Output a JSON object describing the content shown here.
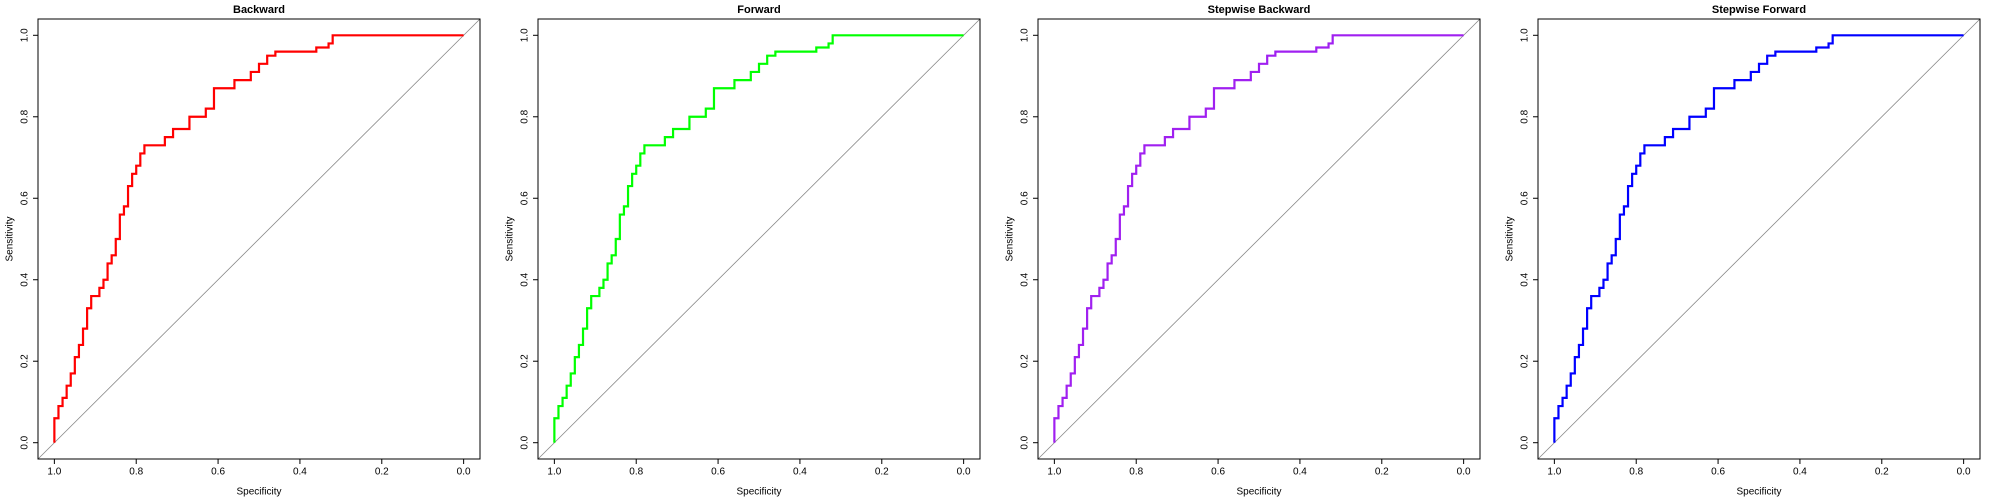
{
  "chart_data": [
    {
      "type": "line",
      "title": "Backward",
      "xlabel": "Specificity",
      "ylabel": "Sensitivity",
      "x": [
        1.0,
        1.0,
        0.99,
        0.99,
        0.98,
        0.98,
        0.97,
        0.97,
        0.96,
        0.96,
        0.95,
        0.95,
        0.94,
        0.94,
        0.93,
        0.93,
        0.92,
        0.92,
        0.91,
        0.91,
        0.89,
        0.89,
        0.88,
        0.88,
        0.87,
        0.87,
        0.86,
        0.86,
        0.85,
        0.85,
        0.84,
        0.84,
        0.83,
        0.83,
        0.82,
        0.82,
        0.81,
        0.81,
        0.8,
        0.8,
        0.79,
        0.79,
        0.78,
        0.78,
        0.73,
        0.73,
        0.71,
        0.71,
        0.67,
        0.67,
        0.63,
        0.63,
        0.61,
        0.61,
        0.56,
        0.56,
        0.52,
        0.52,
        0.5,
        0.5,
        0.48,
        0.48,
        0.46,
        0.46,
        0.36,
        0.36,
        0.33,
        0.33,
        0.32,
        0.32,
        0.0
      ],
      "series": [
        {
          "color": "#ff0000",
          "values": [
            0.0,
            0.06,
            0.06,
            0.09,
            0.09,
            0.11,
            0.11,
            0.14,
            0.14,
            0.17,
            0.17,
            0.21,
            0.21,
            0.24,
            0.24,
            0.28,
            0.28,
            0.33,
            0.33,
            0.36,
            0.36,
            0.38,
            0.38,
            0.4,
            0.4,
            0.44,
            0.44,
            0.46,
            0.46,
            0.5,
            0.5,
            0.56,
            0.56,
            0.58,
            0.58,
            0.63,
            0.63,
            0.66,
            0.66,
            0.68,
            0.68,
            0.71,
            0.71,
            0.73,
            0.73,
            0.75,
            0.75,
            0.77,
            0.77,
            0.8,
            0.8,
            0.82,
            0.82,
            0.87,
            0.87,
            0.89,
            0.89,
            0.91,
            0.91,
            0.93,
            0.93,
            0.95,
            0.95,
            0.96,
            0.96,
            0.97,
            0.97,
            0.98,
            0.98,
            1.0,
            1.0
          ]
        }
      ],
      "xlim": [
        1.04,
        -0.04
      ],
      "ylim": [
        -0.04,
        1.04
      ],
      "xticks": [
        {
          "value": 1,
          "label": "1.0"
        },
        0.8,
        0.6,
        0.4,
        0.2,
        {
          "value": 0,
          "label": "0.0"
        }
      ],
      "yticks": [
        {
          "value": 0,
          "label": "0.0"
        },
        0.2,
        0.4,
        0.6,
        0.8,
        {
          "value": 1,
          "label": "1.0"
        }
      ],
      "diagonal": true
    },
    {
      "type": "line",
      "title": "Forward",
      "xlabel": "Specificity",
      "ylabel": "Sensitivity",
      "x": [
        1.0,
        1.0,
        0.99,
        0.99,
        0.98,
        0.98,
        0.97,
        0.97,
        0.96,
        0.96,
        0.95,
        0.95,
        0.94,
        0.94,
        0.93,
        0.93,
        0.92,
        0.92,
        0.91,
        0.91,
        0.89,
        0.89,
        0.88,
        0.88,
        0.87,
        0.87,
        0.86,
        0.86,
        0.85,
        0.85,
        0.84,
        0.84,
        0.83,
        0.83,
        0.82,
        0.82,
        0.81,
        0.81,
        0.8,
        0.8,
        0.79,
        0.79,
        0.78,
        0.78,
        0.73,
        0.73,
        0.71,
        0.71,
        0.67,
        0.67,
        0.63,
        0.63,
        0.61,
        0.61,
        0.56,
        0.56,
        0.52,
        0.52,
        0.5,
        0.5,
        0.48,
        0.48,
        0.46,
        0.46,
        0.36,
        0.36,
        0.33,
        0.33,
        0.32,
        0.32,
        0.0
      ],
      "series": [
        {
          "color": "#00ff00",
          "values": [
            0.0,
            0.06,
            0.06,
            0.09,
            0.09,
            0.11,
            0.11,
            0.14,
            0.14,
            0.17,
            0.17,
            0.21,
            0.21,
            0.24,
            0.24,
            0.28,
            0.28,
            0.33,
            0.33,
            0.36,
            0.36,
            0.38,
            0.38,
            0.4,
            0.4,
            0.44,
            0.44,
            0.46,
            0.46,
            0.5,
            0.5,
            0.56,
            0.56,
            0.58,
            0.58,
            0.63,
            0.63,
            0.66,
            0.66,
            0.68,
            0.68,
            0.71,
            0.71,
            0.73,
            0.73,
            0.75,
            0.75,
            0.77,
            0.77,
            0.8,
            0.8,
            0.82,
            0.82,
            0.87,
            0.87,
            0.89,
            0.89,
            0.91,
            0.91,
            0.93,
            0.93,
            0.95,
            0.95,
            0.96,
            0.96,
            0.97,
            0.97,
            0.98,
            0.98,
            1.0,
            1.0
          ]
        }
      ],
      "xlim": [
        1.04,
        -0.04
      ],
      "ylim": [
        -0.04,
        1.04
      ],
      "xticks": [
        {
          "value": 1,
          "label": "1.0"
        },
        0.8,
        0.6,
        0.4,
        0.2,
        {
          "value": 0,
          "label": "0.0"
        }
      ],
      "yticks": [
        {
          "value": 0,
          "label": "0.0"
        },
        0.2,
        0.4,
        0.6,
        0.8,
        {
          "value": 1,
          "label": "1.0"
        }
      ],
      "diagonal": true
    },
    {
      "type": "line",
      "title": "Stepwise Backward",
      "xlabel": "Specificity",
      "ylabel": "Sensitivity",
      "x": [
        1.0,
        1.0,
        0.99,
        0.99,
        0.98,
        0.98,
        0.97,
        0.97,
        0.96,
        0.96,
        0.95,
        0.95,
        0.94,
        0.94,
        0.93,
        0.93,
        0.92,
        0.92,
        0.91,
        0.91,
        0.89,
        0.89,
        0.88,
        0.88,
        0.87,
        0.87,
        0.86,
        0.86,
        0.85,
        0.85,
        0.84,
        0.84,
        0.83,
        0.83,
        0.82,
        0.82,
        0.81,
        0.81,
        0.8,
        0.8,
        0.79,
        0.79,
        0.78,
        0.78,
        0.73,
        0.73,
        0.71,
        0.71,
        0.67,
        0.67,
        0.63,
        0.63,
        0.61,
        0.61,
        0.56,
        0.56,
        0.52,
        0.52,
        0.5,
        0.5,
        0.48,
        0.48,
        0.46,
        0.46,
        0.36,
        0.36,
        0.33,
        0.33,
        0.32,
        0.32,
        0.0
      ],
      "series": [
        {
          "color": "#a020f0",
          "values": [
            0.0,
            0.06,
            0.06,
            0.09,
            0.09,
            0.11,
            0.11,
            0.14,
            0.14,
            0.17,
            0.17,
            0.21,
            0.21,
            0.24,
            0.24,
            0.28,
            0.28,
            0.33,
            0.33,
            0.36,
            0.36,
            0.38,
            0.38,
            0.4,
            0.4,
            0.44,
            0.44,
            0.46,
            0.46,
            0.5,
            0.5,
            0.56,
            0.56,
            0.58,
            0.58,
            0.63,
            0.63,
            0.66,
            0.66,
            0.68,
            0.68,
            0.71,
            0.71,
            0.73,
            0.73,
            0.75,
            0.75,
            0.77,
            0.77,
            0.8,
            0.8,
            0.82,
            0.82,
            0.87,
            0.87,
            0.89,
            0.89,
            0.91,
            0.91,
            0.93,
            0.93,
            0.95,
            0.95,
            0.96,
            0.96,
            0.97,
            0.97,
            0.98,
            0.98,
            1.0,
            1.0
          ]
        }
      ],
      "xlim": [
        1.04,
        -0.04
      ],
      "ylim": [
        -0.04,
        1.04
      ],
      "xticks": [
        {
          "value": 1,
          "label": "1.0"
        },
        0.8,
        0.6,
        0.4,
        0.2,
        {
          "value": 0,
          "label": "0.0"
        }
      ],
      "yticks": [
        {
          "value": 0,
          "label": "0.0"
        },
        0.2,
        0.4,
        0.6,
        0.8,
        {
          "value": 1,
          "label": "1.0"
        }
      ],
      "diagonal": true
    },
    {
      "type": "line",
      "title": "Stepwise Forward",
      "xlabel": "Specificity",
      "ylabel": "Sensitivity",
      "x": [
        1.0,
        1.0,
        0.99,
        0.99,
        0.98,
        0.98,
        0.97,
        0.97,
        0.96,
        0.96,
        0.95,
        0.95,
        0.94,
        0.94,
        0.93,
        0.93,
        0.92,
        0.92,
        0.91,
        0.91,
        0.89,
        0.89,
        0.88,
        0.88,
        0.87,
        0.87,
        0.86,
        0.86,
        0.85,
        0.85,
        0.84,
        0.84,
        0.83,
        0.83,
        0.82,
        0.82,
        0.81,
        0.81,
        0.8,
        0.8,
        0.79,
        0.79,
        0.78,
        0.78,
        0.73,
        0.73,
        0.71,
        0.71,
        0.67,
        0.67,
        0.63,
        0.63,
        0.61,
        0.61,
        0.56,
        0.56,
        0.52,
        0.52,
        0.5,
        0.5,
        0.48,
        0.48,
        0.46,
        0.46,
        0.36,
        0.36,
        0.33,
        0.33,
        0.32,
        0.32,
        0.0
      ],
      "series": [
        {
          "color": "#0000ff",
          "values": [
            0.0,
            0.06,
            0.06,
            0.09,
            0.09,
            0.11,
            0.11,
            0.14,
            0.14,
            0.17,
            0.17,
            0.21,
            0.21,
            0.24,
            0.24,
            0.28,
            0.28,
            0.33,
            0.33,
            0.36,
            0.36,
            0.38,
            0.38,
            0.4,
            0.4,
            0.44,
            0.44,
            0.46,
            0.46,
            0.5,
            0.5,
            0.56,
            0.56,
            0.58,
            0.58,
            0.63,
            0.63,
            0.66,
            0.66,
            0.68,
            0.68,
            0.71,
            0.71,
            0.73,
            0.73,
            0.75,
            0.75,
            0.77,
            0.77,
            0.8,
            0.8,
            0.82,
            0.82,
            0.87,
            0.87,
            0.89,
            0.89,
            0.91,
            0.91,
            0.93,
            0.93,
            0.95,
            0.95,
            0.96,
            0.96,
            0.97,
            0.97,
            0.98,
            0.98,
            1.0,
            1.0
          ]
        }
      ],
      "xlim": [
        1.04,
        -0.04
      ],
      "ylim": [
        -0.04,
        1.04
      ],
      "xticks": [
        {
          "value": 1,
          "label": "1.0"
        },
        0.8,
        0.6,
        0.4,
        0.2,
        {
          "value": 0,
          "label": "0.0"
        }
      ],
      "yticks": [
        {
          "value": 0,
          "label": "0.0"
        },
        0.2,
        0.4,
        0.6,
        0.8,
        {
          "value": 1,
          "label": "1.0"
        }
      ],
      "diagonal": true
    }
  ]
}
